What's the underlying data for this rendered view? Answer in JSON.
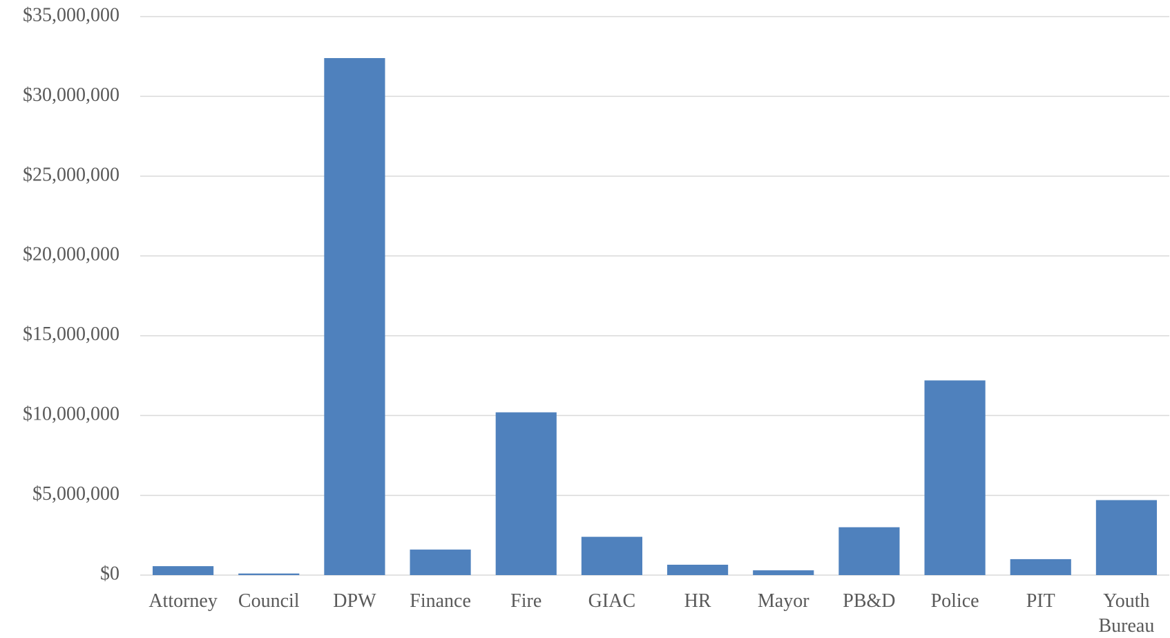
{
  "chart_data": {
    "type": "bar",
    "categories": [
      "Attorney",
      "Council",
      "DPW",
      "Finance",
      "Fire",
      "GIAC",
      "HR",
      "Mayor",
      "PB&D",
      "Police",
      "PIT",
      "Youth Bureau"
    ],
    "values": [
      560000,
      100000,
      32400000,
      1600000,
      10200000,
      2400000,
      650000,
      300000,
      3000000,
      12200000,
      1000000,
      4700000
    ],
    "color": "#4f81bd",
    "ylim": [
      0,
      35000000
    ],
    "yticks": [
      {
        "value": 0,
        "label": "$0"
      },
      {
        "value": 5000000,
        "label": "$5,000,000"
      },
      {
        "value": 10000000,
        "label": "$10,000,000"
      },
      {
        "value": 15000000,
        "label": "$15,000,000"
      },
      {
        "value": 20000000,
        "label": "$20,000,000"
      },
      {
        "value": 25000000,
        "label": "$25,000,000"
      },
      {
        "value": 30000000,
        "label": "$30,000,000"
      },
      {
        "value": 35000000,
        "label": "$35,000,000"
      }
    ],
    "grid": true
  }
}
